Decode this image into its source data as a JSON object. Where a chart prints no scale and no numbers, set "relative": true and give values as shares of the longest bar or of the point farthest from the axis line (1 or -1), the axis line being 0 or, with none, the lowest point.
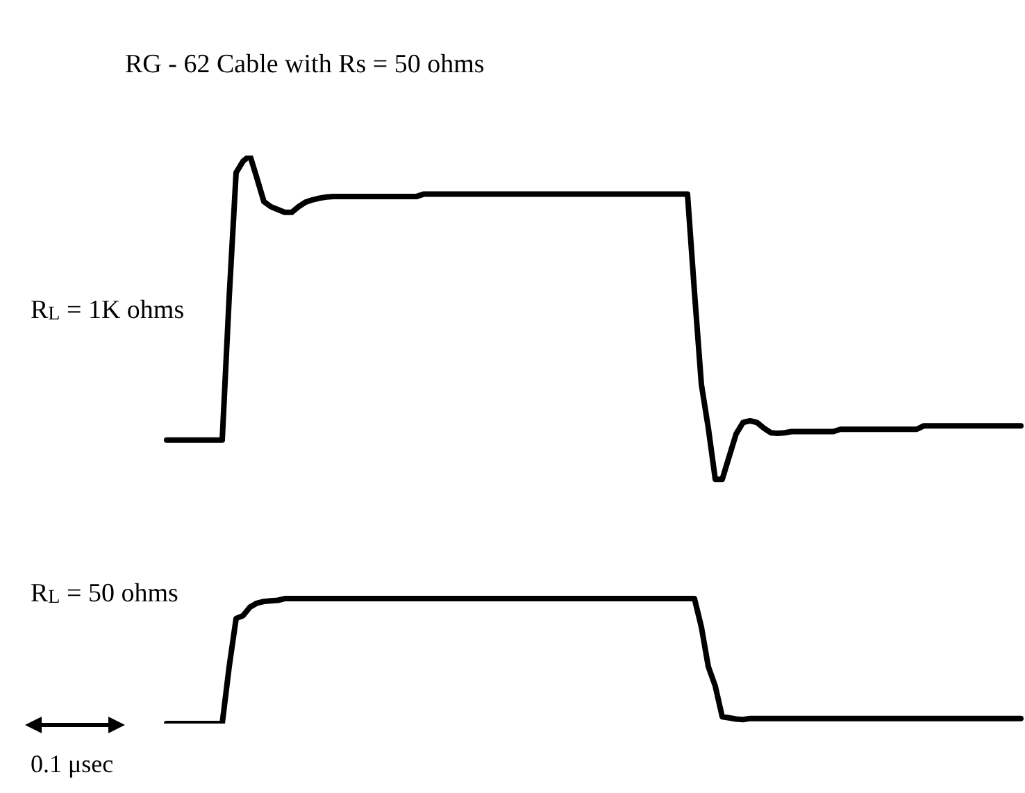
{
  "chart_data": {
    "type": "line",
    "title": "RG - 62 Cable with Rs = 50 ohms",
    "relative": true,
    "categories": [
      null,
      null,
      null,
      null,
      null,
      null,
      null,
      null,
      null,
      null,
      null,
      null,
      null,
      null,
      null,
      null,
      null,
      null,
      null,
      null,
      null,
      null,
      null,
      null,
      null,
      null,
      null,
      null,
      null,
      null,
      null,
      null,
      null,
      null,
      null,
      null,
      null,
      null,
      null,
      null,
      null,
      null,
      null,
      null,
      null,
      null,
      null,
      null,
      null,
      null,
      null,
      null,
      null,
      null,
      null,
      null,
      null,
      null,
      null,
      null,
      null,
      null,
      null,
      null,
      null,
      null,
      null,
      null,
      null,
      null,
      null,
      null,
      null,
      null,
      null,
      null,
      null,
      null,
      null,
      null,
      null,
      null,
      null,
      null,
      null,
      null,
      null,
      null,
      null,
      null,
      null,
      null,
      null,
      null,
      null,
      null,
      null,
      null,
      null,
      null,
      null,
      null,
      null,
      null,
      null,
      null,
      null,
      null,
      null,
      null,
      null,
      null,
      null,
      null,
      null,
      null,
      null,
      null,
      null,
      null,
      null,
      null,
      null,
      null
    ],
    "series": [
      {
        "name": "R$_{L}$ = 1K ohms",
        "color": "#000000",
        "values": [
          0.499,
          0.499,
          0.499,
          0.499,
          0.499,
          0.499,
          0.499,
          0.499,
          0.499,
          0.75,
          0.97,
          0.99,
          1,
          0.96,
          0.919,
          0.91,
          0.905,
          0.9,
          0.9,
          0.91,
          0.918,
          0.922,
          0.925,
          0.927,
          0.928,
          0.928,
          0.928,
          0.928,
          0.928,
          0.928,
          0.928,
          0.928,
          0.928,
          0.928,
          0.928,
          0.928,
          0.928,
          0.932,
          0.932,
          0.932,
          0.932,
          0.932,
          0.932,
          0.932,
          0.932,
          0.932,
          0.932,
          0.932,
          0.932,
          0.932,
          0.932,
          0.932,
          0.932,
          0.932,
          0.932,
          0.932,
          0.932,
          0.932,
          0.932,
          0.932,
          0.932,
          0.932,
          0.932,
          0.932,
          0.932,
          0.932,
          0.932,
          0.932,
          0.932,
          0.932,
          0.932,
          0.932,
          0.932,
          0.932,
          0.932,
          0.932,
          0.76,
          0.597,
          0.52,
          0.43,
          0.43,
          0.47,
          0.51,
          0.53,
          0.533,
          0.53,
          0.52,
          0.512,
          0.511,
          0.512,
          0.514,
          0.514,
          0.514,
          0.514,
          0.514,
          0.514,
          0.514,
          0.518,
          0.518,
          0.518,
          0.518,
          0.518,
          0.518,
          0.518,
          0.518,
          0.518,
          0.518,
          0.518,
          0.518,
          0.524,
          0.524,
          0.524,
          0.524,
          0.524,
          0.524,
          0.524,
          0.524,
          0.524,
          0.524,
          0.524,
          0.524,
          0.524,
          0.524,
          0.524
        ]
      },
      {
        "name": "R$_{L}$ = 50 ohms",
        "color": "#000000",
        "values": [
          0,
          0,
          0,
          0,
          0,
          0,
          0,
          0,
          0,
          0.1,
          0.185,
          0.19,
          0.205,
          0.212,
          0.215,
          0.216,
          0.217,
          0.22,
          0.22,
          0.22,
          0.22,
          0.22,
          0.22,
          0.22,
          0.22,
          0.22,
          0.22,
          0.22,
          0.22,
          0.22,
          0.22,
          0.22,
          0.22,
          0.22,
          0.22,
          0.22,
          0.22,
          0.22,
          0.22,
          0.22,
          0.22,
          0.22,
          0.22,
          0.22,
          0.22,
          0.22,
          0.22,
          0.22,
          0.22,
          0.22,
          0.22,
          0.22,
          0.22,
          0.22,
          0.22,
          0.22,
          0.22,
          0.22,
          0.22,
          0.22,
          0.22,
          0.22,
          0.22,
          0.22,
          0.22,
          0.22,
          0.22,
          0.22,
          0.22,
          0.22,
          0.22,
          0.22,
          0.22,
          0.22,
          0.22,
          0.22,
          0.22,
          0.17,
          0.1,
          0.066,
          0.012,
          0.01,
          0.008,
          0.007,
          0.009,
          0.009,
          0.009,
          0.009,
          0.009,
          0.009,
          0.009,
          0.009,
          0.009,
          0.009,
          0.009,
          0.009,
          0.009,
          0.009,
          0.009,
          0.009,
          0.009,
          0.009,
          0.009,
          0.009,
          0.009,
          0.009,
          0.009,
          0.009,
          0.009,
          0.009,
          0.009,
          0.009,
          0.009,
          0.009,
          0.009,
          0.009,
          0.009,
          0.009,
          0.009,
          0.009,
          0.009,
          0.009,
          0.009,
          0.009
        ]
      }
    ],
    "annotations": [
      "0.1 μsec"
    ]
  }
}
